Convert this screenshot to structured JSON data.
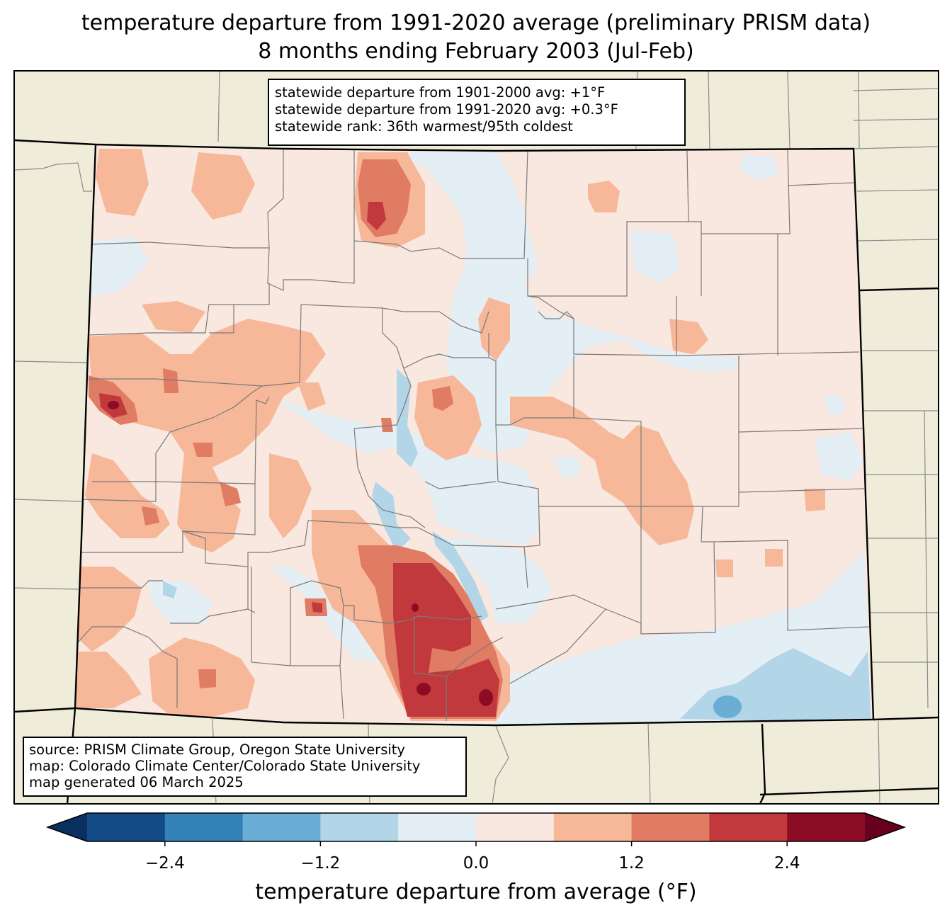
{
  "title": {
    "line1": "temperature departure from 1991-2020 average (preliminary PRISM data)",
    "line2": "8 months ending February 2003 (Jul-Feb)"
  },
  "stats": {
    "line1": "statewide departure from 1901-2000 avg: +1°F",
    "line2": "statewide departure from 1991-2020 avg: +0.3°F",
    "line3": "statewide rank: 36th warmest/95th coldest"
  },
  "credits": {
    "line1": "source: PRISM Climate Group, Oregon State University",
    "line2": "map: Colorado Climate Center/Colorado State University",
    "line3": "map generated 06 March 2025"
  },
  "colorbar": {
    "label": "temperature departure from average (°F)",
    "ticks": [
      "−2.4",
      "−1.2",
      "0.0",
      "1.2",
      "2.4"
    ],
    "tick_values": [
      -2.4,
      -1.2,
      0.0,
      1.2,
      2.4
    ],
    "levels": [
      -3.0,
      -2.4,
      -1.8,
      -1.2,
      -0.6,
      0.0,
      0.6,
      1.2,
      1.8,
      2.4,
      3.0
    ],
    "colors": [
      "#134b87",
      "#3480b9",
      "#6aadd5",
      "#b2d5e8",
      "#e4eef5",
      "#f9e8e0",
      "#f7b799",
      "#e07b64",
      "#c1393c",
      "#8c0c25"
    ],
    "under_color": "#0a3060",
    "over_color": "#67001f"
  },
  "map_colors": {
    "land": "#efedda",
    "base_fill": "#f9e8e0"
  }
}
